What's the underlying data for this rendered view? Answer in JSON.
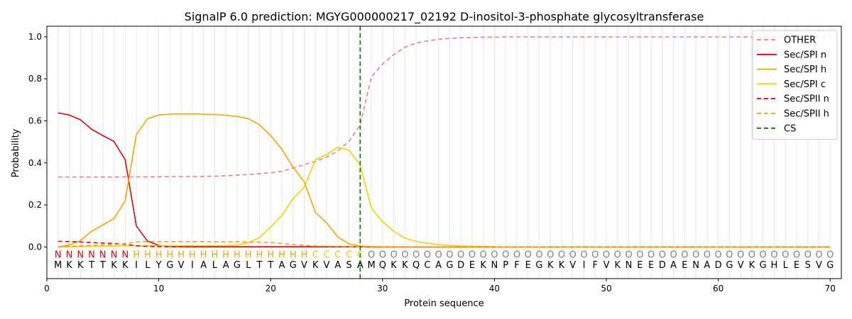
{
  "chart_data": {
    "type": "line",
    "title": "SignalP 6.0 prediction: MGYG000000217_02192 D-inositol-3-phosphate glycosyltransferase",
    "xlabel": "Protein sequence",
    "ylabel": "Probability",
    "xlim": [
      0,
      71
    ],
    "ylim": [
      -0.15,
      1.05
    ],
    "xticks": [
      0,
      10,
      20,
      30,
      40,
      50,
      60,
      70
    ],
    "yticks": [
      0.0,
      0.2,
      0.4,
      0.6,
      0.8,
      1.0
    ],
    "xtick_labels": [
      "0",
      "10",
      "20",
      "30",
      "40",
      "50",
      "60",
      "70"
    ],
    "ytick_labels": [
      "0.0",
      "0.2",
      "0.4",
      "0.6",
      "0.8",
      "1.0"
    ],
    "legend_position": "top-right",
    "cleavage_site": 28,
    "sequence": [
      "M",
      "K",
      "K",
      "T",
      "T",
      "K",
      "K",
      "I",
      "L",
      "Y",
      "G",
      "V",
      "I",
      "A",
      "L",
      "A",
      "G",
      "L",
      "T",
      "T",
      "A",
      "G",
      "V",
      "K",
      "V",
      "A",
      "S",
      "A",
      "M",
      "Q",
      "K",
      "K",
      "Q",
      "C",
      "A",
      "G",
      "D",
      "E",
      "K",
      "N",
      "P",
      "F",
      "E",
      "G",
      "K",
      "K",
      "V",
      "I",
      "F",
      "V",
      "K",
      "N",
      "E",
      "E",
      "D",
      "A",
      "E",
      "N",
      "A",
      "D",
      "G",
      "V",
      "K",
      "G",
      "H",
      "L",
      "E",
      "S",
      "V",
      "G"
    ],
    "region_labels": [
      "N",
      "N",
      "N",
      "N",
      "N",
      "N",
      "N",
      "H",
      "H",
      "H",
      "H",
      "H",
      "H",
      "H",
      "H",
      "H",
      "H",
      "H",
      "H",
      "H",
      "H",
      "H",
      "H",
      "C",
      "C",
      "C",
      "C",
      "C",
      "O",
      "O",
      "O",
      "O",
      "O",
      "O",
      "O",
      "O",
      "O",
      "O",
      "O",
      "O",
      "O",
      "O",
      "O",
      "O",
      "O",
      "O",
      "O",
      "O",
      "O",
      "O",
      "O",
      "O",
      "O",
      "O",
      "O",
      "O",
      "O",
      "O",
      "O",
      "O",
      "O",
      "O",
      "O",
      "O",
      "O",
      "O",
      "O",
      "O",
      "O",
      "O"
    ],
    "region_colors": {
      "N": "#e8000b",
      "H": "#f5a300",
      "C": "#f5c800",
      "O": "#808080"
    },
    "series": [
      {
        "name": "OTHER",
        "color": "#f08080",
        "dash": "6,4",
        "values": [
          0.333,
          0.333,
          0.333,
          0.333,
          0.333,
          0.333,
          0.334,
          0.334,
          0.334,
          0.334,
          0.335,
          0.335,
          0.335,
          0.336,
          0.337,
          0.339,
          0.342,
          0.345,
          0.349,
          0.353,
          0.36,
          0.375,
          0.392,
          0.407,
          0.428,
          0.457,
          0.503,
          0.58,
          0.81,
          0.87,
          0.915,
          0.95,
          0.97,
          0.98,
          0.988,
          0.992,
          0.995,
          0.997,
          0.998,
          0.998,
          0.999,
          0.999,
          0.999,
          0.999,
          0.999,
          0.999,
          0.999,
          0.999,
          0.999,
          0.999,
          0.999,
          0.999,
          0.999,
          0.999,
          0.999,
          0.999,
          0.999,
          0.999,
          0.999,
          0.999,
          0.999,
          0.999,
          0.998,
          0.998,
          0.998,
          0.998,
          0.998,
          0.998,
          0.998,
          0.998
        ]
      },
      {
        "name": "Sec/SPI n",
        "color": "#e8000b",
        "dash": "",
        "values": [
          0.638,
          0.628,
          0.605,
          0.56,
          0.53,
          0.502,
          0.415,
          0.1,
          0.028,
          0.008,
          0.003,
          0.002,
          0.001,
          0.001,
          0.001,
          0.001,
          0.001,
          0.001,
          0.001,
          0.001,
          0.001,
          0.001,
          0.001,
          0.001,
          0.001,
          0.001,
          0.001,
          0.001,
          0.0,
          0.0,
          0.0,
          0.0,
          0.0,
          0.0,
          0.0,
          0.0,
          0.0,
          0.0,
          0.0,
          0.0,
          0.0,
          0.0,
          0.0,
          0.0,
          0.0,
          0.0,
          0.0,
          0.0,
          0.0,
          0.0,
          0.0,
          0.0,
          0.0,
          0.0,
          0.0,
          0.0,
          0.0,
          0.0,
          0.0,
          0.0,
          0.0,
          0.0,
          0.0,
          0.0,
          0.0,
          0.0,
          0.0,
          0.0,
          0.0,
          0.0
        ]
      },
      {
        "name": "Sec/SPI h",
        "color": "#f5a300",
        "dash": "",
        "values": [
          0.0,
          0.01,
          0.03,
          0.075,
          0.105,
          0.135,
          0.22,
          0.535,
          0.61,
          0.628,
          0.632,
          0.633,
          0.633,
          0.632,
          0.63,
          0.627,
          0.621,
          0.61,
          0.582,
          0.53,
          0.465,
          0.38,
          0.31,
          0.165,
          0.115,
          0.048,
          0.015,
          0.005,
          0.002,
          0.001,
          0.001,
          0.001,
          0.0,
          0.0,
          0.0,
          0.0,
          0.0,
          0.0,
          0.0,
          0.0,
          0.0,
          0.0,
          0.0,
          0.0,
          0.0,
          0.0,
          0.0,
          0.0,
          0.0,
          0.0,
          0.0,
          0.0,
          0.0,
          0.0,
          0.0,
          0.0,
          0.0,
          0.0,
          0.0,
          0.0,
          0.0,
          0.0,
          0.0,
          0.0,
          0.0,
          0.0,
          0.0,
          0.0,
          0.0,
          0.0
        ]
      },
      {
        "name": "Sec/SPI c",
        "color": "#f5d000",
        "dash": "",
        "values": [
          0.0,
          0.001,
          0.002,
          0.003,
          0.004,
          0.005,
          0.006,
          0.006,
          0.006,
          0.006,
          0.006,
          0.006,
          0.006,
          0.006,
          0.006,
          0.007,
          0.01,
          0.02,
          0.045,
          0.095,
          0.15,
          0.23,
          0.285,
          0.415,
          0.44,
          0.475,
          0.46,
          0.39,
          0.185,
          0.12,
          0.075,
          0.042,
          0.027,
          0.018,
          0.012,
          0.008,
          0.005,
          0.004,
          0.003,
          0.002,
          0.001,
          0.001,
          0.001,
          0.001,
          0.001,
          0.001,
          0.001,
          0.001,
          0.001,
          0.001,
          0.001,
          0.001,
          0.001,
          0.001,
          0.001,
          0.001,
          0.001,
          0.001,
          0.001,
          0.001,
          0.001,
          0.001,
          0.001,
          0.001,
          0.001,
          0.001,
          0.001,
          0.001,
          0.001,
          0.001
        ]
      },
      {
        "name": "Sec/SPII n",
        "color": "#e8000b",
        "dash": "6,4",
        "values": [
          0.027,
          0.026,
          0.024,
          0.021,
          0.019,
          0.017,
          0.013,
          0.006,
          0.003,
          0.002,
          0.001,
          0.001,
          0.001,
          0.001,
          0.001,
          0.001,
          0.001,
          0.001,
          0.001,
          0.001,
          0.001,
          0.001,
          0.001,
          0.001,
          0.001,
          0.001,
          0.001,
          0.001,
          0.0,
          0.0,
          0.0,
          0.0,
          0.0,
          0.0,
          0.0,
          0.0,
          0.0,
          0.0,
          0.0,
          0.0,
          0.0,
          0.0,
          0.0,
          0.0,
          0.0,
          0.0,
          0.0,
          0.0,
          0.0,
          0.0,
          0.0,
          0.0,
          0.0,
          0.0,
          0.0,
          0.0,
          0.0,
          0.0,
          0.0,
          0.0,
          0.0,
          0.0,
          0.0,
          0.0,
          0.0,
          0.0,
          0.0,
          0.0,
          0.0,
          0.0
        ]
      },
      {
        "name": "Sec/SPII h",
        "color": "#f5a300",
        "dash": "6,4",
        "values": [
          0.0,
          0.003,
          0.006,
          0.008,
          0.01,
          0.012,
          0.016,
          0.024,
          0.026,
          0.026,
          0.026,
          0.026,
          0.026,
          0.026,
          0.025,
          0.025,
          0.025,
          0.024,
          0.023,
          0.021,
          0.017,
          0.012,
          0.008,
          0.005,
          0.004,
          0.003,
          0.002,
          0.001,
          0.0,
          0.0,
          0.0,
          0.0,
          0.0,
          0.0,
          0.0,
          0.0,
          0.0,
          0.0,
          0.0,
          0.0,
          0.0,
          0.0,
          0.0,
          0.0,
          0.0,
          0.0,
          0.0,
          0.0,
          0.0,
          0.0,
          0.0,
          0.0,
          0.0,
          0.0,
          0.0,
          0.0,
          0.0,
          0.0,
          0.0,
          0.0,
          0.0,
          0.0,
          0.0,
          0.0,
          0.0,
          0.0,
          0.0,
          0.0,
          0.0,
          0.0
        ]
      }
    ],
    "cs_legend": {
      "name": "CS",
      "color": "#007a00"
    }
  }
}
